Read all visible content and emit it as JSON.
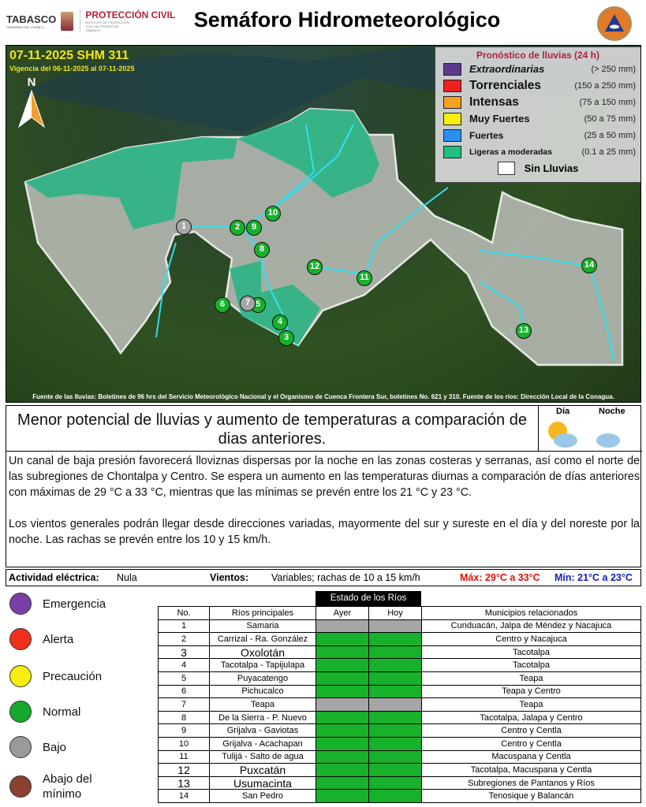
{
  "header": {
    "logo_tabasco": "TABASCO",
    "logo_tabasco_sub": "GOBIERNO DEL PUEBLO",
    "logo_pc": "PROTECCIÓN CIVIL",
    "logo_pc_sub": "INSTITUTO DE PROTECCIÓN CIVIL DEL ESTADO DE TABASCO",
    "title": "Semáforo Hidrometeorológico",
    "seal_text": "SISTEMA ESTATAL DE PROTECCIÓN CIVIL TABASCO"
  },
  "map": {
    "bulletin": "07-11-2025 SHM 311",
    "validity": "Vigencia del 06-11-2025 al 07-11-2025",
    "north": "N",
    "legend": {
      "title": "Pronóstico de lluvias (24 h)",
      "items": [
        {
          "label": "Extraordinarias",
          "range": "(> 250 mm)",
          "color": "#5b3a8c"
        },
        {
          "label": "Torrenciales",
          "range": "(150 a 250 mm)",
          "color": "#f02020"
        },
        {
          "label": "Intensas",
          "range": "(75 a 150 mm)",
          "color": "#f7a020"
        },
        {
          "label": "Muy Fuertes",
          "range": "(50 a 75 mm)",
          "color": "#f7ee10"
        },
        {
          "label": "Fuertes",
          "range": "(25 a 50 mm)",
          "color": "#2a90f0"
        },
        {
          "label": "Ligeras a moderadas",
          "range": "(0.1 a 25 mm)",
          "color": "#20c080"
        }
      ],
      "none": "Sin Lluvias"
    },
    "source": "Fuente de las lluvias: Boletines de 96 hrs del Servicio Meteorológico Nacional y el Organismo de Cuenca Frontera Sur, boletines No. 621 y 310. Fuente de los ríos: Dirección Local de la Conagua.",
    "markers": [
      {
        "n": "1",
        "status": "Bajo"
      },
      {
        "n": "2",
        "status": "Normal"
      },
      {
        "n": "3",
        "status": "Normal"
      },
      {
        "n": "4",
        "status": "Normal"
      },
      {
        "n": "5",
        "status": "Normal"
      },
      {
        "n": "6",
        "status": "Normal"
      },
      {
        "n": "7",
        "status": "Bajo"
      },
      {
        "n": "8",
        "status": "Normal"
      },
      {
        "n": "9",
        "status": "Normal"
      },
      {
        "n": "10",
        "status": "Normal"
      },
      {
        "n": "11",
        "status": "Normal"
      },
      {
        "n": "12",
        "status": "Normal"
      },
      {
        "n": "13",
        "status": "Normal"
      },
      {
        "n": "14",
        "status": "Normal"
      }
    ]
  },
  "forecast": {
    "headline": "Menor potencial de lluvias y aumento de temperaturas a comparación de dias anteriores.",
    "day_label": "Día",
    "night_label": "Noche",
    "day_icon": "sun-cloud-icon",
    "night_icon": "moon-cloud-icon",
    "paragraph1": "Un canal de baja presión favorecerá lloviznas dispersas por la noche en las zonas costeras y serranas, así como el norte de las subregiones de Chontalpa y Centro. Se espera un aumento en las temperaturas diurnas a comparación de días anteriores con máximas de 29 °C a 33 °C, mientras que las mínimas se prevén entre los 21 °C y 23 °C.",
    "paragraph2": "Los vientos generales podrán llegar desde direcciones variadas, mayormente del sur y sureste en el día y del noreste por la noche. Las rachas se prevén entre los 10 y 15 km/h."
  },
  "conditions": {
    "electric_label": "Actividad eléctrica:",
    "electric_value": "Nula",
    "wind_label": "Vientos:",
    "wind_value": "Variables; rachas de 10 a 15 km/h",
    "max": "Máx: 29°C a 33°C",
    "min": "Mín: 21°C a 23°C"
  },
  "status_legend": [
    {
      "label": "Emergencia",
      "color": "#7b3fa8"
    },
    {
      "label": "Alerta",
      "color": "#f0301a"
    },
    {
      "label": "Precaución",
      "color": "#f7ee10"
    },
    {
      "label": "Normal",
      "color": "#17a82e"
    },
    {
      "label": "Bajo",
      "color": "#9a9a9a"
    },
    {
      "label": "Abajo del mínimo",
      "color": "#8b4030"
    }
  ],
  "status_colors": {
    "Normal": "#17b12b",
    "Bajo": "#a6a6a6"
  },
  "rivers": {
    "title": "Estado de los Ríos",
    "headers": [
      "No.",
      "Ríos principales",
      "Ayer",
      "Hoy",
      "Municipios relacionados"
    ],
    "rows": [
      {
        "no": "1",
        "river": "Samaria",
        "ayer": "Bajo",
        "hoy": "Bajo",
        "mun": "Cunduacán, Jalpa de Méndez y Nacajuca"
      },
      {
        "no": "2",
        "river": "Carrizal - Ra. González",
        "ayer": "Normal",
        "hoy": "Normal",
        "mun": "Centro y Nacajuca"
      },
      {
        "no": "3",
        "river": "Oxolotán",
        "ayer": "Normal",
        "hoy": "Normal",
        "mun": "Tacotalpa"
      },
      {
        "no": "4",
        "river": "Tacotalpa - Tapijulapa",
        "ayer": "Normal",
        "hoy": "Normal",
        "mun": "Tacotalpa"
      },
      {
        "no": "5",
        "river": "Puyacatengo",
        "ayer": "Normal",
        "hoy": "Normal",
        "mun": "Teapa"
      },
      {
        "no": "6",
        "river": "Pichucalco",
        "ayer": "Normal",
        "hoy": "Normal",
        "mun": "Teapa y Centro"
      },
      {
        "no": "7",
        "river": "Teapa",
        "ayer": "Bajo",
        "hoy": "Bajo",
        "mun": "Teapa"
      },
      {
        "no": "8",
        "river": "De la Sierra - P. Nuevo",
        "ayer": "Normal",
        "hoy": "Normal",
        "mun": "Tacotalpa, Jalapa y Centro"
      },
      {
        "no": "9",
        "river": "Grijalva - Gaviotas",
        "ayer": "Normal",
        "hoy": "Normal",
        "mun": "Centro y Centla"
      },
      {
        "no": "10",
        "river": "Grijalva - Acachapan",
        "ayer": "Normal",
        "hoy": "Normal",
        "mun": "Centro y Centla"
      },
      {
        "no": "11",
        "river": "Tulijá - Salto de agua",
        "ayer": "Normal",
        "hoy": "Normal",
        "mun": "Macuspana y Centla"
      },
      {
        "no": "12",
        "river": "Puxcatán",
        "ayer": "Normal",
        "hoy": "Normal",
        "mun": "Tacotalpa, Macuspana y Centla"
      },
      {
        "no": "13",
        "river": "Usumacinta",
        "ayer": "Normal",
        "hoy": "Normal",
        "mun": "Subregiones de Pantanos y Ríos"
      },
      {
        "no": "14",
        "river": "San Pedro",
        "ayer": "Normal",
        "hoy": "Normal",
        "mun": "Tenosique y Balancán"
      }
    ]
  }
}
